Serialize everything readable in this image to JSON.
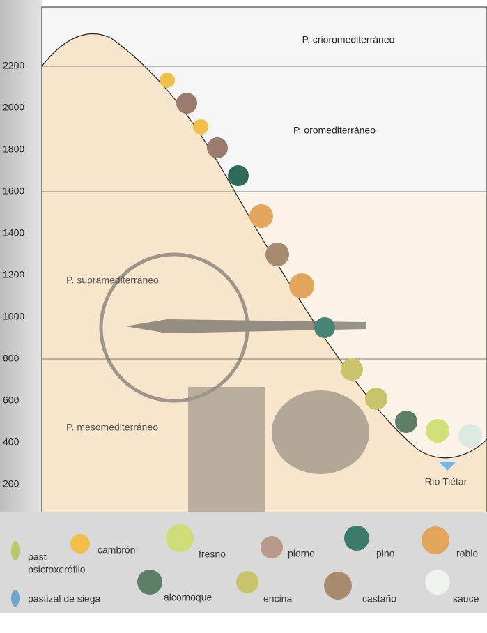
{
  "axis": {
    "ticks": [
      200,
      400,
      600,
      800,
      1000,
      1200,
      1400,
      1600,
      1800,
      2000,
      2200
    ]
  },
  "zones": [
    "P. crioromediterráneo",
    "P. oromediterráneo",
    "P. supramediterráneo",
    "P. mesomediterráneo"
  ],
  "river": "Río Tiétar",
  "legend": {
    "row1": [
      "past",
      "psicroxerófilo",
      "cambrón",
      "fresno",
      "piorno",
      "pino",
      "roble"
    ],
    "row2": [
      "pastizal de siega",
      "alcornoque",
      "encina",
      "castaño",
      "sauce"
    ]
  }
}
